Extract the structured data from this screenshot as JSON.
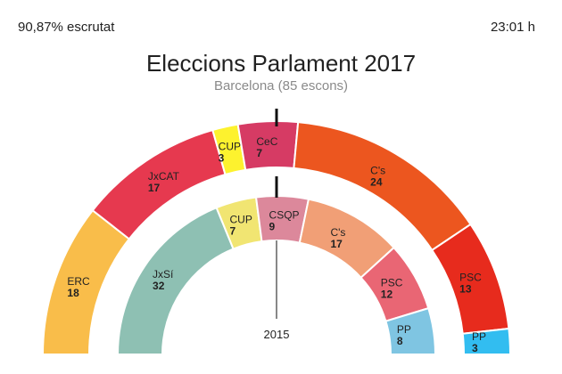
{
  "header": {
    "counted": "90,87% escrutat",
    "time": "23:01 h"
  },
  "chart_data": {
    "type": "hemicycle",
    "title": "Eleccions Parlament 2017",
    "subtitle": "Barcelona (85 escons)",
    "rings": [
      {
        "name": "2017",
        "total": 85,
        "series": [
          {
            "party": "ERC",
            "seats": 18,
            "color": "#f9bd4a"
          },
          {
            "party": "JxCAT",
            "seats": 17,
            "color": "#e6394f"
          },
          {
            "party": "CUP",
            "seats": 3,
            "color": "#fdf22e"
          },
          {
            "party": "CeC",
            "seats": 7,
            "color": "#d63b64"
          },
          {
            "party": "C's",
            "seats": 24,
            "color": "#ec561f"
          },
          {
            "party": "PSC",
            "seats": 13,
            "color": "#e72b1d"
          },
          {
            "party": "PP",
            "seats": 3,
            "color": "#32bdf0"
          }
        ]
      },
      {
        "name": "2015",
        "label": "2015",
        "total": 85,
        "series": [
          {
            "party": "JxSí",
            "seats": 32,
            "color": "#8ec0b3"
          },
          {
            "party": "CUP",
            "seats": 7,
            "color": "#f1e572"
          },
          {
            "party": "CSQP",
            "seats": 9,
            "color": "#dc889b"
          },
          {
            "party": "C's",
            "seats": 17,
            "color": "#f19f76"
          },
          {
            "party": "PSC",
            "seats": 12,
            "color": "#e96674"
          },
          {
            "party": "PP",
            "seats": 8,
            "color": "#7fc5e2"
          }
        ]
      }
    ]
  }
}
